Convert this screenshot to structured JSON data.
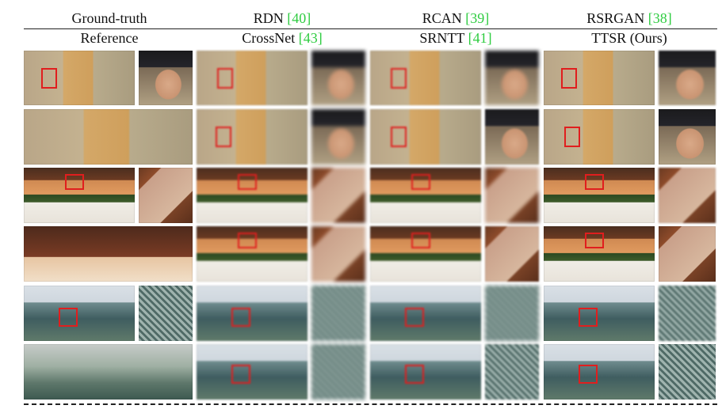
{
  "header": {
    "row1": [
      {
        "label": "Ground-truth",
        "ref": ""
      },
      {
        "label": "RDN",
        "ref": "[40]"
      },
      {
        "label": "RCAN",
        "ref": "[39]"
      },
      {
        "label": "RSRGAN",
        "ref": "[38]"
      }
    ],
    "row2": [
      {
        "label": "Reference",
        "ref": ""
      },
      {
        "label": "CrossNet",
        "ref": "[43]"
      },
      {
        "label": "SRNTT",
        "ref": "[41]"
      },
      {
        "label": "TTSR (Ours)",
        "ref": ""
      }
    ]
  },
  "colors": {
    "citation": "#2ecc40",
    "highlight_box": "#e01e1e"
  }
}
